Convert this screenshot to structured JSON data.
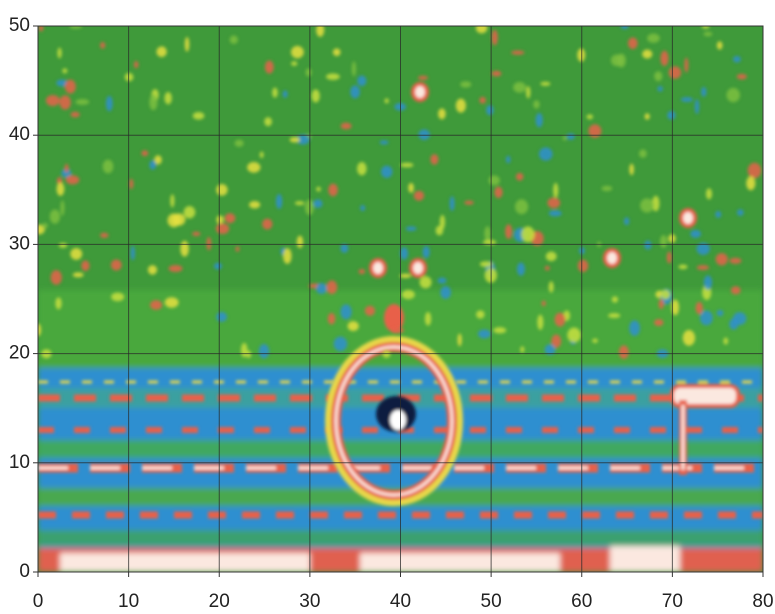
{
  "chart_data": {
    "type": "heatmap",
    "xlim": [
      0,
      80
    ],
    "xticks": [
      0,
      10,
      20,
      30,
      40,
      50,
      60,
      70,
      80
    ],
    "ylim": [
      0,
      50
    ],
    "yticks": [
      0,
      10,
      20,
      30,
      40,
      50
    ],
    "grid": true
  }
}
